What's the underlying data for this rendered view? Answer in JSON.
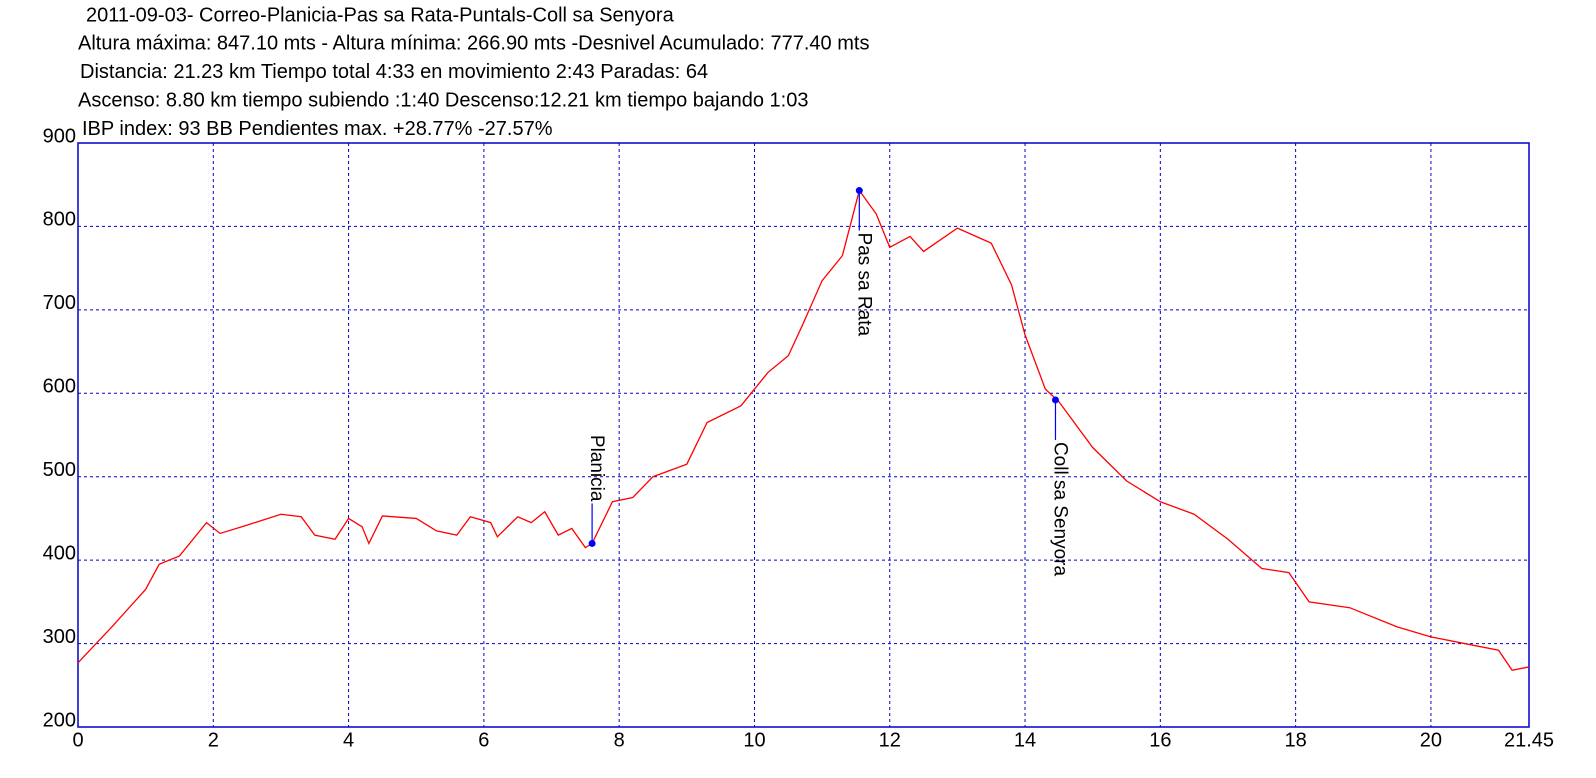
{
  "chart_data": {
    "type": "line",
    "title": "2011-09-03- Correo-Planicia-Pas sa Rata-Puntals-Coll sa Senyora",
    "notes": [
      "Altura máxima: 847.10 mts - Altura mínima: 266.90 mts -Desnivel Acumulado: 777.40 mts",
      "Distancia: 21.23 km  Tiempo total 4:33  en movimiento 2:43 Paradas: 64",
      "Ascenso: 8.80 km  tiempo subiendo :1:40  Descenso:12.21 km tiempo bajando 1:03",
      "IBP index: 93 BB  Pendientes max. +28.77%  -27.57%"
    ],
    "x": [
      0,
      0.5,
      1.0,
      1.2,
      1.5,
      1.9,
      2.1,
      2.5,
      3.0,
      3.3,
      3.5,
      3.8,
      4.0,
      4.2,
      4.3,
      4.5,
      5.0,
      5.3,
      5.6,
      5.8,
      6.1,
      6.2,
      6.5,
      6.7,
      6.9,
      7.1,
      7.3,
      7.5,
      7.6,
      7.9,
      8.2,
      8.5,
      9.0,
      9.3,
      9.8,
      10.2,
      10.5,
      10.7,
      11.0,
      11.3,
      11.55,
      11.8,
      12.0,
      12.3,
      12.5,
      13.0,
      13.5,
      13.8,
      14.0,
      14.3,
      14.5,
      15.0,
      15.5,
      16.0,
      16.5,
      17.0,
      17.5,
      17.9,
      18.2,
      18.8,
      19.5,
      20.0,
      20.5,
      21.0,
      21.2,
      21.45
    ],
    "series": [
      {
        "color": "#ff0000",
        "values": [
          277,
          320,
          365,
          395,
          405,
          445,
          432,
          442,
          455,
          452,
          430,
          425,
          450,
          440,
          420,
          453,
          450,
          435,
          430,
          452,
          445,
          428,
          452,
          445,
          458,
          430,
          438,
          415,
          420,
          470,
          475,
          500,
          515,
          565,
          585,
          625,
          645,
          680,
          735,
          765,
          843,
          815,
          775,
          788,
          770,
          798,
          780,
          730,
          670,
          605,
          590,
          535,
          495,
          470,
          455,
          425,
          390,
          385,
          350,
          343,
          320,
          308,
          300,
          292,
          268,
          272
        ]
      }
    ],
    "annotations": [
      {
        "text": "Planicia",
        "x": 7.6,
        "y": 420,
        "label_side": "above"
      },
      {
        "text": "Pas sa Rata",
        "x": 11.55,
        "y": 843,
        "label_side": "below"
      },
      {
        "text": "Coll sa Senyora",
        "x": 14.45,
        "y": 592,
        "label_side": "below"
      }
    ],
    "xlim": [
      0,
      21.45
    ],
    "xticks": [
      0,
      2,
      4,
      6,
      8,
      10,
      12,
      14,
      16,
      18,
      20,
      21.45
    ],
    "ylim": [
      200,
      900
    ],
    "yticks": [
      200,
      300,
      400,
      500,
      600,
      700,
      800,
      900
    ],
    "grid": true,
    "grid_color": "#0000cc",
    "frame_color": "#0000cc",
    "marker_color": "#0000ff"
  }
}
